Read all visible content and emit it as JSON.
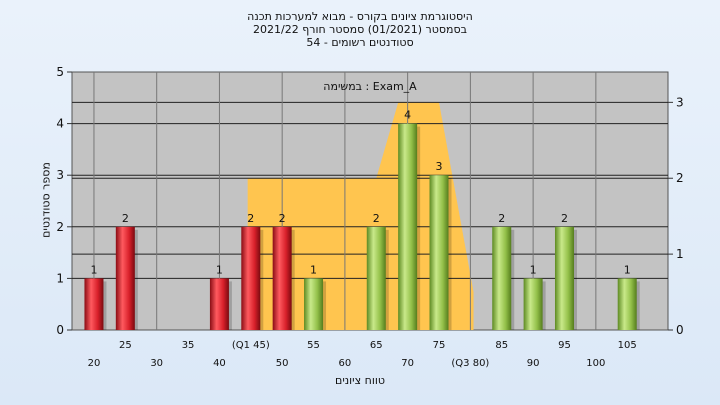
{
  "header": {
    "line1": "היסטוגרמת ציונים בקורס - מבוא למערכות תכנה",
    "line2": "בסמסטר  (01/2021)  סמסטר חורף 2021/22",
    "line3": "סטודנטים רשומים - 54"
  },
  "chart_data": {
    "type": "bar",
    "annotation": "במשימה : Exam_A",
    "xlabel": "טווח ציונים",
    "ylabel": "מספר סטודנטים",
    "ylim": [
      0,
      5
    ],
    "y2lim": [
      0,
      3.4
    ],
    "yticks": [
      0,
      1,
      2,
      3,
      4,
      5
    ],
    "y2ticks": [
      0,
      1,
      2,
      3
    ],
    "grid": true,
    "x_ticks_upper": [
      {
        "x": 25,
        "label": "25"
      },
      {
        "x": 35,
        "label": "35"
      },
      {
        "x": 45,
        "label": "(Q1 45)"
      },
      {
        "x": 55,
        "label": "55"
      },
      {
        "x": 65,
        "label": "65"
      },
      {
        "x": 75,
        "label": "75"
      },
      {
        "x": 85,
        "label": "85"
      },
      {
        "x": 95,
        "label": "95"
      },
      {
        "x": 105,
        "label": "105"
      }
    ],
    "x_ticks_lower": [
      {
        "x": 20,
        "label": "20"
      },
      {
        "x": 30,
        "label": "30"
      },
      {
        "x": 40,
        "label": "40"
      },
      {
        "x": 50,
        "label": "50"
      },
      {
        "x": 60,
        "label": "60"
      },
      {
        "x": 70,
        "label": "70"
      },
      {
        "x": 80,
        "label": "(Q3 80)"
      },
      {
        "x": 90,
        "label": "90"
      },
      {
        "x": 100,
        "label": "100"
      }
    ],
    "bars": [
      {
        "x": 20,
        "value": 1,
        "group": "below"
      },
      {
        "x": 25,
        "value": 2,
        "group": "below"
      },
      {
        "x": 40,
        "value": 1,
        "group": "below"
      },
      {
        "x": 45,
        "value": 2,
        "group": "below"
      },
      {
        "x": 50,
        "value": 2,
        "group": "below"
      },
      {
        "x": 55,
        "value": 1,
        "group": "above"
      },
      {
        "x": 65,
        "value": 2,
        "group": "above"
      },
      {
        "x": 70,
        "value": 4,
        "group": "above"
      },
      {
        "x": 75,
        "value": 3,
        "group": "above"
      },
      {
        "x": 85,
        "value": 2,
        "group": "above"
      },
      {
        "x": 90,
        "value": 1,
        "group": "above"
      },
      {
        "x": 95,
        "value": 2,
        "group": "above"
      },
      {
        "x": 105,
        "value": 1,
        "group": "above"
      }
    ],
    "area": {
      "points_x": [
        44.5,
        44.5,
        65,
        68.5,
        75,
        80.5,
        80.5
      ],
      "points_y2": [
        0,
        2.0,
        2.0,
        3.0,
        3.0,
        0.5,
        0
      ]
    },
    "colors": {
      "plot_bg": "#c3c3c3",
      "area": "#ffc54f",
      "bar_below": "#d8202a",
      "bar_above": "#93c049",
      "grid": "#222222"
    }
  }
}
